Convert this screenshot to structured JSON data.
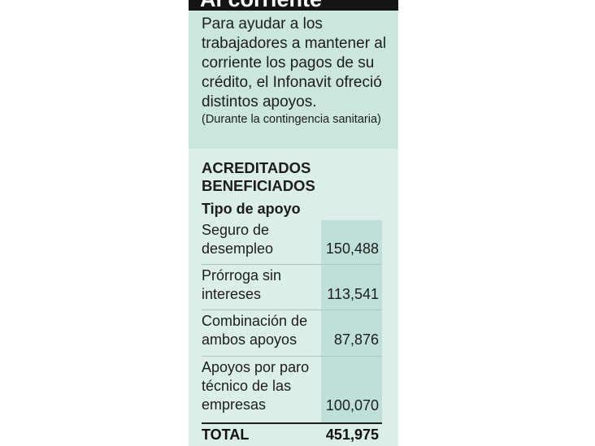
{
  "header": {
    "title": "Al corriente"
  },
  "intro": {
    "text": "Para ayudar a los trabajadores a mantener al corriente los pagos de su crédito, el Infonavit ofreció distintos apoyos.",
    "note": "(Durante la contingencia sanitaria)"
  },
  "table": {
    "title": "ACREDITADOS BENEFICIADOS",
    "subtitle": "Tipo de apoyo",
    "rows": [
      {
        "label": "Seguro de desempleo",
        "value": "150,488"
      },
      {
        "label": "Prórroga sin intereses",
        "value": "113,541"
      },
      {
        "label": "Combinación de ambos apoyos",
        "value": "87,876"
      },
      {
        "label": "Apoyos por paro técnico de las empresas",
        "value": "100,070"
      }
    ],
    "total_label": "TOTAL",
    "total_value": "451,975"
  },
  "colors": {
    "panel": "#dceee9",
    "intro_box": "#cbe6df",
    "value_column": "#bfe0d8",
    "header_bar": "#141414"
  }
}
